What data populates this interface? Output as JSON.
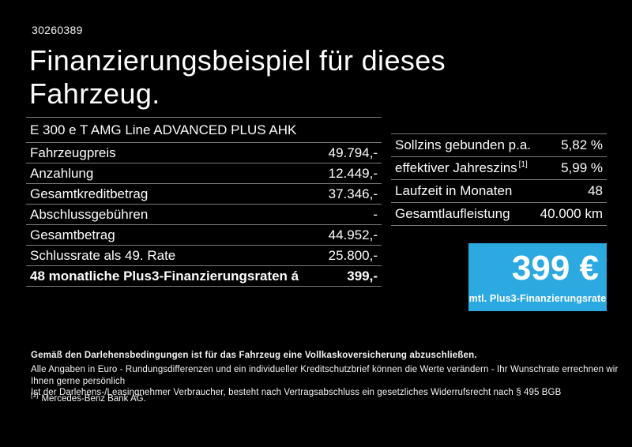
{
  "page": {
    "ref_number": "30260389",
    "title": "Finanzierungsbeispiel für dieses Fahrzeug.",
    "vehicle_model": "E 300 e T AMG Line ADVANCED PLUS AHK"
  },
  "left_table": {
    "rows": [
      {
        "label": "Fahrzeugpreis",
        "value": "49.794,-"
      },
      {
        "label": "Anzahlung",
        "value": "12.449,-"
      },
      {
        "label": "Gesamtkreditbetrag",
        "value": "37.346,-"
      },
      {
        "label": "Abschlussgebühren",
        "value": "-"
      },
      {
        "label": "Gesamtbetrag",
        "value": "44.952,-"
      },
      {
        "label": "Schlussrate als 49. Rate",
        "value": "25.800,-"
      },
      {
        "label": "48 monatliche Plus3-Finanzierungsraten á",
        "value": "399,-",
        "bold": true
      }
    ]
  },
  "right_table": {
    "rows": [
      {
        "label": "Sollzins gebunden p.a.",
        "value": "5,82 %"
      },
      {
        "label": "effektiver Jahreszins",
        "sup": "[1]",
        "value": "5,99 %"
      },
      {
        "label": "Laufzeit in Monaten",
        "value": "48"
      },
      {
        "label": "Gesamtlaufleistung",
        "value": "40.000 km"
      }
    ]
  },
  "rate_box": {
    "amount": "399 €",
    "caption": "mtl. Plus3-Finanzierungsrate",
    "background_color": "#2BA9E0"
  },
  "footer": {
    "insurance_note": "Gemäß den Darlehensbedingungen ist für das Fahrzeug eine Vollkaskoversicherung abzuschließen.",
    "disclaimer_line1": "Alle Angaben in Euro - Rundungsdifferenzen und ein individueller Kreditschutzbrief können die Werte verändern - Ihr Wunschrate errechnen wir Ihnen gerne persönlich",
    "disclaimer_line2": "Ist der Darlehens-/Leasingnehmer Verbraucher, besteht nach Vertragsabschluss ein gesetzliches Widerrufsrecht nach § 495 BGB",
    "footnote_marker": "[1]",
    "footnote_text": "Mercedes-Benz Bank AG."
  },
  "colors": {
    "background": "#000000",
    "text": "#FFFFFF",
    "divider": "#7C7C7C",
    "accent_blue": "#2BA9E0"
  }
}
